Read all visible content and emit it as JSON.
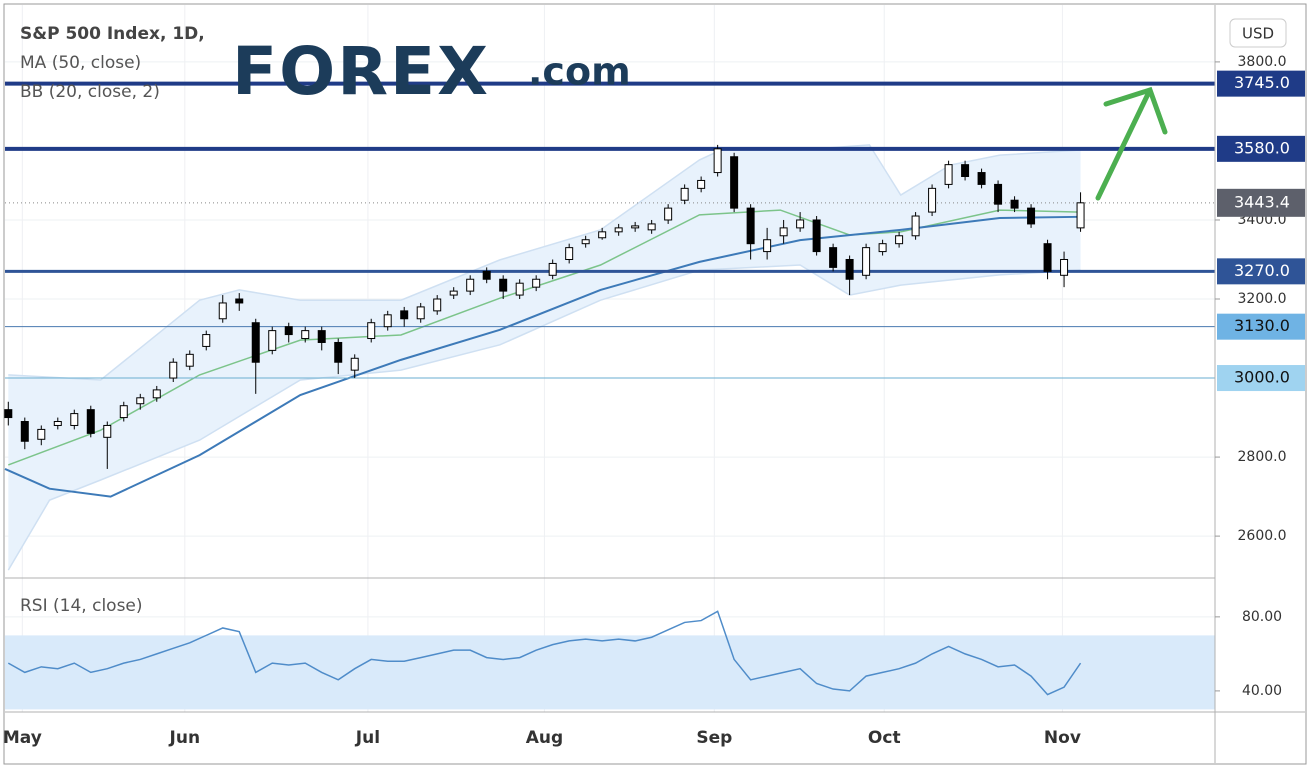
{
  "chart_data": {
    "type": "candlestick",
    "title": "S&P 500 Index, 1D,",
    "currency": "USD",
    "logo": {
      "text": "FOREX",
      "suffix": ".com"
    },
    "xlim": [
      -0.2,
      73.15
    ],
    "xticks": [
      {
        "value": 0.85,
        "label": "May"
      },
      {
        "value": 10.7,
        "label": "Jun"
      },
      {
        "value": 21.8,
        "label": "Jul"
      },
      {
        "value": 32.5,
        "label": "Aug"
      },
      {
        "value": 42.8,
        "label": "Sep"
      },
      {
        "value": 53.1,
        "label": "Oct"
      },
      {
        "value": 63.9,
        "label": "Nov"
      }
    ],
    "ylim": [
      2494,
      3944
    ],
    "yticks": [
      {
        "value": 2600,
        "label": "2600.0"
      },
      {
        "value": 2800,
        "label": "2800.0"
      },
      {
        "value": 3200,
        "label": "3200.0"
      },
      {
        "value": 3400,
        "label": "3400.0"
      },
      {
        "value": 3800,
        "label": "3800.0"
      }
    ],
    "grid": true,
    "up_color": "#ffffff",
    "down_color": "#000000",
    "open": [
      2920,
      2890,
      2845,
      2880,
      2880,
      2920,
      2850,
      2900,
      2935,
      2950,
      3000,
      3030,
      3080,
      3150,
      3200,
      3140,
      3070,
      3130,
      3100,
      3120,
      3090,
      3020,
      3100,
      3130,
      3170,
      3150,
      3170,
      3210,
      3220,
      3270,
      3250,
      3210,
      3230,
      3260,
      3300,
      3340,
      3355,
      3370,
      3380,
      3375,
      3400,
      3450,
      3480,
      3520,
      3560,
      3430,
      3320,
      3360,
      3380,
      3400,
      3330,
      3300,
      3260,
      3320,
      3340,
      3360,
      3420,
      3490,
      3540,
      3520,
      3490,
      3450,
      3430,
      3340,
      3260,
      3380
    ],
    "high": [
      2940,
      2900,
      2880,
      2900,
      2920,
      2930,
      2890,
      2940,
      2960,
      2980,
      3050,
      3070,
      3120,
      3210,
      3215,
      3150,
      3130,
      3140,
      3130,
      3130,
      3100,
      3060,
      3150,
      3170,
      3180,
      3190,
      3210,
      3230,
      3260,
      3280,
      3260,
      3250,
      3260,
      3300,
      3340,
      3360,
      3380,
      3390,
      3395,
      3400,
      3440,
      3490,
      3510,
      3590,
      3570,
      3440,
      3380,
      3400,
      3420,
      3410,
      3340,
      3310,
      3340,
      3350,
      3370,
      3420,
      3490,
      3550,
      3550,
      3530,
      3500,
      3460,
      3440,
      3350,
      3320,
      3470
    ],
    "low": [
      2880,
      2820,
      2830,
      2870,
      2870,
      2850,
      2770,
      2890,
      2920,
      2940,
      2990,
      3020,
      3070,
      3140,
      3170,
      2960,
      3060,
      3090,
      3090,
      3070,
      3010,
      3000,
      3090,
      3120,
      3130,
      3140,
      3160,
      3200,
      3210,
      3240,
      3200,
      3200,
      3220,
      3250,
      3290,
      3330,
      3350,
      3360,
      3370,
      3365,
      3390,
      3440,
      3470,
      3510,
      3420,
      3300,
      3300,
      3340,
      3370,
      3310,
      3270,
      3210,
      3250,
      3310,
      3330,
      3350,
      3410,
      3480,
      3500,
      3480,
      3420,
      3420,
      3380,
      3250,
      3230,
      3370
    ],
    "close": [
      2900,
      2840,
      2870,
      2890,
      2910,
      2860,
      2880,
      2930,
      2950,
      2970,
      3040,
      3060,
      3110,
      3190,
      3190,
      3040,
      3120,
      3110,
      3120,
      3090,
      3040,
      3050,
      3140,
      3160,
      3150,
      3180,
      3200,
      3220,
      3250,
      3250,
      3220,
      3240,
      3250,
      3290,
      3330,
      3350,
      3370,
      3380,
      3385,
      3390,
      3430,
      3480,
      3500,
      3580,
      3430,
      3340,
      3350,
      3380,
      3400,
      3320,
      3280,
      3250,
      3330,
      3340,
      3360,
      3410,
      3480,
      3540,
      3510,
      3490,
      3440,
      3430,
      3390,
      3270,
      3300,
      3443.4
    ],
    "ma": {
      "name": "MA (50, close)",
      "color": "#3d7ab8",
      "x": [
        -0.2,
        2.5,
        6.2,
        11.6,
        17.7,
        23.8,
        29.8,
        35.9,
        41.9,
        48,
        54.1,
        60.1,
        65
      ],
      "values": [
        2770,
        2720,
        2700,
        2805,
        2957,
        3046,
        3122,
        3223,
        3294,
        3349,
        3375,
        3405,
        3408
      ]
    },
    "bb": {
      "name": "BB (20, close, 2)",
      "basis_color": "#7cc48a",
      "band_color": "#cfe0f2",
      "fill": "#e8f2fc",
      "basis": {
        "x": [
          0,
          5.6,
          11.6,
          17.7,
          23.8,
          29.8,
          35.9,
          41.9,
          46.8,
          51,
          54.1,
          60.1,
          65
        ],
        "values": [
          2780,
          2868,
          3008,
          3096,
          3109,
          3202,
          3286,
          3413,
          3425,
          3362,
          3370,
          3425,
          3420
        ]
      },
      "upper": {
        "x": [
          0,
          5.6,
          11.6,
          14,
          17.7,
          23.8,
          29.8,
          35.9,
          41.9,
          43.2,
          48,
          52.2,
          54.1,
          57.1,
          60.1,
          65
        ],
        "values": [
          3008,
          2995,
          3197,
          3223,
          3197,
          3197,
          3299,
          3375,
          3552,
          3577,
          3577,
          3590,
          3463,
          3539,
          3564,
          3577
        ]
      },
      "lower": {
        "x": [
          0,
          2.5,
          5.6,
          11.6,
          17.7,
          23.8,
          29.8,
          35.9,
          41.9,
          48,
          51,
          54.1,
          60.1,
          65
        ],
        "values": [
          2514,
          2691,
          2742,
          2843,
          2995,
          3020,
          3084,
          3197,
          3273,
          3286,
          3210,
          3235,
          3261,
          3273
        ]
      }
    },
    "levels": [
      {
        "value": 3745,
        "label": "3745.0",
        "color": "#1f3b87",
        "width": 4,
        "box": "#1f3b87",
        "text_color": "#ffffff"
      },
      {
        "value": 3580,
        "label": "3580.0",
        "color": "#1f3b87",
        "width": 4,
        "box": "#1f3b87",
        "text_color": "#ffffff"
      },
      {
        "value": 3270,
        "label": "3270.0",
        "color": "#2f5497",
        "width": 3,
        "box": "#2f5497",
        "text_color": "#ffffff"
      },
      {
        "value": 3130,
        "label": "3130.0",
        "color": "#4a7ab0",
        "width": 1,
        "box": "#6fb3e4",
        "text_color": "#111111"
      },
      {
        "value": 3000,
        "label": "3000.0",
        "color": "#6aaed0",
        "width": 1,
        "box": "#9fd3f0",
        "text_color": "#111111"
      }
    ],
    "last_price": {
      "value": 3443.4,
      "label": "3443.4",
      "color": "#5d606b"
    },
    "rsi": {
      "name": "RSI (14, close)",
      "color": "#4f8cc9",
      "band_color": "#d9eafa",
      "ylim": [
        28.6,
        101
      ],
      "yticks": [
        {
          "value": 40,
          "label": "40.00"
        },
        {
          "value": 80,
          "label": "80.00"
        }
      ],
      "band": [
        30,
        70
      ],
      "values": [
        55,
        50,
        53,
        52,
        55,
        50,
        52,
        55,
        57,
        60,
        63,
        66,
        70,
        74,
        72,
        50,
        55,
        54,
        55,
        50,
        46,
        52,
        57,
        56,
        56,
        58,
        60,
        62,
        62,
        58,
        57,
        58,
        62,
        65,
        67,
        68,
        67,
        68,
        67,
        69,
        73,
        77,
        78,
        83,
        57,
        46,
        48,
        50,
        52,
        44,
        41,
        40,
        48,
        50,
        52,
        55,
        60,
        64,
        60,
        57,
        53,
        54,
        48,
        38,
        42,
        55
      ]
    }
  }
}
